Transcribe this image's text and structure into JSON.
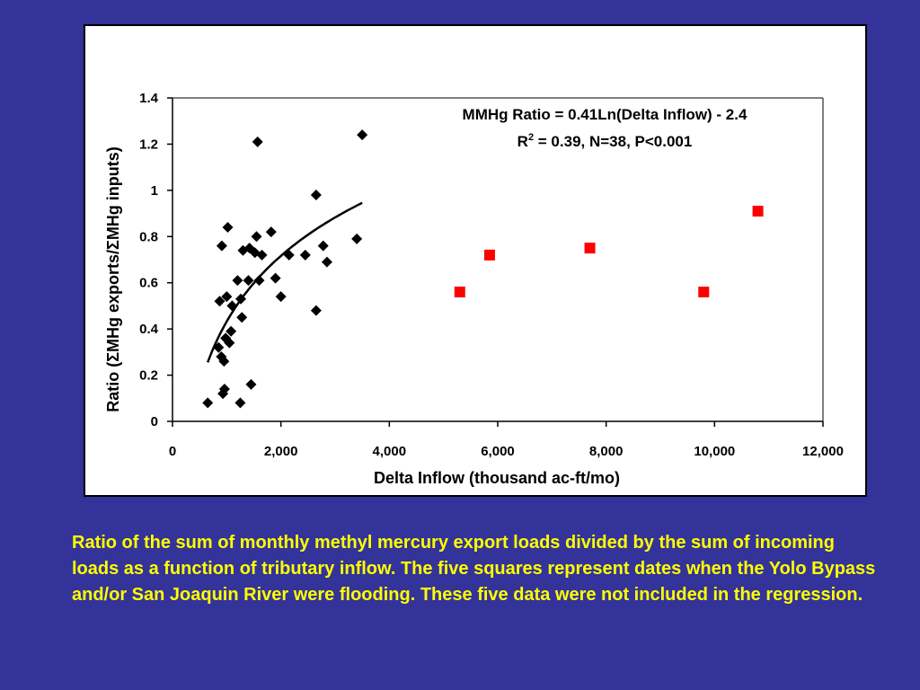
{
  "chart_data": {
    "type": "scatter",
    "xlabel": "Delta Inflow (thousand ac-ft/mo)",
    "ylabel": "Ratio (ΣMHg exports/ΣMHg inputs)",
    "xlim": [
      0,
      12000
    ],
    "ylim": [
      0,
      1.4
    ],
    "x_ticks": [
      0,
      2000,
      4000,
      6000,
      8000,
      10000,
      12000
    ],
    "x_tick_labels": [
      "0",
      "2,000",
      "4,000",
      "6,000",
      "8,000",
      "10,000",
      "12,000"
    ],
    "y_ticks": [
      0,
      0.2,
      0.4,
      0.6,
      0.8,
      1.0,
      1.2,
      1.4
    ],
    "y_tick_labels": [
      "0",
      "0.2",
      "0.4",
      "0.6",
      "0.8",
      "1",
      "1.2",
      "1.4"
    ],
    "grid": false,
    "annotations": {
      "line1": "MMHg Ratio = 0.41Ln(Delta Inflow) - 2.4",
      "line2_r": "R",
      "line2_sup": "2",
      "line2_rest": " = 0.39, N=38, P<0.001"
    },
    "series": [
      {
        "marker": "diamond",
        "color": "#000000",
        "points": [
          [
            650,
            0.08
          ],
          [
            850,
            0.32
          ],
          [
            870,
            0.52
          ],
          [
            900,
            0.28
          ],
          [
            910,
            0.76
          ],
          [
            930,
            0.12
          ],
          [
            950,
            0.26
          ],
          [
            960,
            0.14
          ],
          [
            980,
            0.36
          ],
          [
            1000,
            0.54
          ],
          [
            1020,
            0.84
          ],
          [
            1050,
            0.34
          ],
          [
            1080,
            0.39
          ],
          [
            1100,
            0.5
          ],
          [
            1200,
            0.61
          ],
          [
            1250,
            0.08
          ],
          [
            1260,
            0.53
          ],
          [
            1280,
            0.45
          ],
          [
            1300,
            0.74
          ],
          [
            1400,
            0.61
          ],
          [
            1420,
            0.75
          ],
          [
            1450,
            0.16
          ],
          [
            1520,
            0.73
          ],
          [
            1550,
            0.8
          ],
          [
            1570,
            1.21
          ],
          [
            1600,
            0.61
          ],
          [
            1650,
            0.72
          ],
          [
            1820,
            0.82
          ],
          [
            1900,
            0.62
          ],
          [
            2000,
            0.54
          ],
          [
            2150,
            0.72
          ],
          [
            2450,
            0.72
          ],
          [
            2650,
            0.98
          ],
          [
            2650,
            0.48
          ],
          [
            2780,
            0.76
          ],
          [
            2850,
            0.69
          ],
          [
            3400,
            0.79
          ],
          [
            3500,
            1.24
          ]
        ]
      },
      {
        "marker": "square",
        "color": "#ff0000",
        "points": [
          [
            5300,
            0.56
          ],
          [
            5850,
            0.72
          ],
          [
            7700,
            0.75
          ],
          [
            9800,
            0.56
          ],
          [
            10800,
            0.91
          ]
        ]
      }
    ],
    "fit": {
      "equation": "0.41*ln(x) - 2.4",
      "a": 0.41,
      "b": -2.4,
      "x_range": [
        650,
        3500
      ],
      "color": "#000000"
    }
  },
  "caption": "Ratio of the sum of monthly methyl mercury export loads divided by the sum of incoming loads as a function of tributary inflow. The five squares represent dates when the Yolo Bypass and/or San Joaquin River were flooding.  These five data were not included in the regression."
}
